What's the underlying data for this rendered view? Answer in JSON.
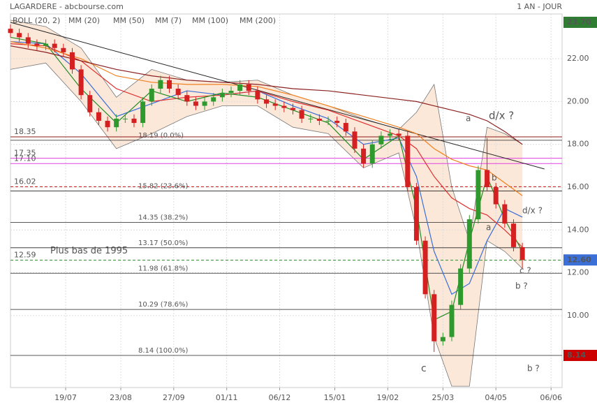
{
  "chart_data": {
    "type": "candlestick",
    "title": "LAGARDERE - abcbourse.com",
    "period": "1 AN - JOUR",
    "xlim": [
      0,
      250
    ],
    "ylim": [
      6.64,
      24.09
    ],
    "grid": true,
    "yticks": [
      {
        "value": 10,
        "label": "10.00"
      },
      {
        "value": 12,
        "label": "12.00"
      },
      {
        "value": 14,
        "label": "14.00"
      },
      {
        "value": 16,
        "label": "16.00"
      },
      {
        "value": 18,
        "label": "18.00"
      },
      {
        "value": 20,
        "label": "20.00"
      },
      {
        "value": 22,
        "label": "22.00"
      }
    ],
    "xticks": [
      {
        "value": 25,
        "label": "19/07"
      },
      {
        "value": 50,
        "label": "23/08"
      },
      {
        "value": 74,
        "label": "27/09"
      },
      {
        "value": 98,
        "label": "01/11"
      },
      {
        "value": 122,
        "label": "06/12"
      },
      {
        "value": 147,
        "label": "15/01"
      },
      {
        "value": 171,
        "label": "19/02"
      },
      {
        "value": 196,
        "label": "25/03"
      },
      {
        "value": 220,
        "label": "04/05"
      },
      {
        "value": 245,
        "label": "06/06"
      }
    ],
    "candles": {
      "up_color": "#2e9a2e",
      "down_color": "#d42020",
      "x": [
        0,
        4,
        8,
        12,
        16,
        20,
        24,
        28,
        32,
        36,
        40,
        44,
        48,
        52,
        56,
        60,
        64,
        68,
        72,
        76,
        80,
        84,
        88,
        92,
        96,
        100,
        104,
        108,
        112,
        116,
        120,
        124,
        128,
        132,
        136,
        140,
        144,
        148,
        152,
        156,
        160,
        164,
        168,
        172,
        176,
        180,
        184,
        188,
        192,
        196,
        200,
        204,
        208,
        212,
        216,
        220,
        224,
        228,
        232
      ],
      "open": [
        23.4,
        23.2,
        23.0,
        22.7,
        22.6,
        22.7,
        22.5,
        22.3,
        21.5,
        20.3,
        19.5,
        19.1,
        18.8,
        19.2,
        19.2,
        19.0,
        20.0,
        20.6,
        21.0,
        20.6,
        20.3,
        20.0,
        19.8,
        20.0,
        20.2,
        20.4,
        20.5,
        20.8,
        20.5,
        20.1,
        19.9,
        19.8,
        19.7,
        19.6,
        19.2,
        19.2,
        19.1,
        19.1,
        19.0,
        18.6,
        17.8,
        17.1,
        18.0,
        18.4,
        18.5,
        18.4,
        16.0,
        13.5,
        11.0,
        8.8,
        9.0,
        10.5,
        12.2,
        14.5,
        16.8,
        16.0,
        15.2,
        14.3,
        13.2
      ],
      "high": [
        23.6,
        23.4,
        23.2,
        22.9,
        22.9,
        22.9,
        22.7,
        22.5,
        21.7,
        20.5,
        19.7,
        19.3,
        19.4,
        19.4,
        19.4,
        20.2,
        20.8,
        21.2,
        21.2,
        20.8,
        20.5,
        20.2,
        20.2,
        20.4,
        20.6,
        20.7,
        21.0,
        21.0,
        20.7,
        20.3,
        20.1,
        20.0,
        19.9,
        19.8,
        19.4,
        19.4,
        19.3,
        19.3,
        19.2,
        18.8,
        18.0,
        18.2,
        18.6,
        18.7,
        18.7,
        18.6,
        16.2,
        13.7,
        11.2,
        9.2,
        10.7,
        12.4,
        14.7,
        17.0,
        18.3,
        16.2,
        15.4,
        14.5,
        13.4
      ],
      "low": [
        23.0,
        22.8,
        22.5,
        22.4,
        22.4,
        22.3,
        22.1,
        21.3,
        20.1,
        19.3,
        18.9,
        18.6,
        18.6,
        19.0,
        18.8,
        18.8,
        19.8,
        20.4,
        20.4,
        20.1,
        19.8,
        19.6,
        19.6,
        19.8,
        20.0,
        20.2,
        20.3,
        20.3,
        19.9,
        19.7,
        19.6,
        19.5,
        19.4,
        19.0,
        19.0,
        18.9,
        18.9,
        18.8,
        18.4,
        17.6,
        16.9,
        16.9,
        17.8,
        18.2,
        18.2,
        15.8,
        13.3,
        10.8,
        8.3,
        8.6,
        8.8,
        10.3,
        12.0,
        14.3,
        15.8,
        15.0,
        14.1,
        13.0,
        12.2
      ],
      "close": [
        23.2,
        23.0,
        22.7,
        22.6,
        22.7,
        22.5,
        22.3,
        21.5,
        20.3,
        19.5,
        19.1,
        18.8,
        19.2,
        19.2,
        19.0,
        20.0,
        20.6,
        21.0,
        20.6,
        20.3,
        20.0,
        19.8,
        20.0,
        20.2,
        20.4,
        20.5,
        20.8,
        20.5,
        20.1,
        19.9,
        19.8,
        19.7,
        19.6,
        19.2,
        19.2,
        19.1,
        19.1,
        19.0,
        18.6,
        17.8,
        17.1,
        18.0,
        18.4,
        18.5,
        18.4,
        16.0,
        13.5,
        11.0,
        8.8,
        9.0,
        10.5,
        12.2,
        14.5,
        16.8,
        16.0,
        15.2,
        14.3,
        13.2,
        12.6
      ]
    },
    "indicator_x": [
      0,
      16,
      32,
      48,
      64,
      80,
      96,
      112,
      128,
      144,
      160,
      176,
      184,
      192,
      200,
      208,
      216,
      224,
      232
    ],
    "bollinger": {
      "name": "BOLL (20, 2)",
      "color": "#777777",
      "fill": "#fbe2d0",
      "upper": [
        23.8,
        23.5,
        22.5,
        20.2,
        21.5,
        21.0,
        20.9,
        21.0,
        20.3,
        19.8,
        19.2,
        18.7,
        19.5,
        20.8,
        16.0,
        13.5,
        18.8,
        18.5,
        18.0
      ],
      "lower": [
        21.5,
        21.8,
        20.0,
        17.8,
        18.5,
        19.3,
        19.8,
        19.8,
        18.8,
        18.5,
        16.9,
        17.6,
        14.0,
        9.0,
        6.7,
        6.7,
        13.5,
        13.0,
        12.2
      ]
    },
    "series": [
      {
        "name": "MM (20)",
        "color": "#3a6fd8",
        "values": [
          22.8,
          22.7,
          21.3,
          19.3,
          19.9,
          20.5,
          20.3,
          20.5,
          19.8,
          19.2,
          18.0,
          18.3,
          16.5,
          13.0,
          11.0,
          11.5,
          13.5,
          15.0,
          14.6
        ]
      },
      {
        "name": "MM (50)",
        "color": "#e03030",
        "values": [
          22.7,
          22.6,
          21.9,
          20.6,
          20.0,
          20.2,
          20.3,
          20.5,
          20.0,
          19.6,
          19.0,
          18.4,
          17.8,
          16.5,
          15.5,
          15.0,
          14.7,
          14.0,
          13.2
        ]
      },
      {
        "name": "MM (7)",
        "color": "#228b22",
        "values": [
          23.0,
          22.7,
          20.6,
          19.0,
          20.5,
          20.0,
          20.4,
          20.2,
          19.6,
          19.0,
          17.3,
          18.4,
          15.0,
          9.8,
          10.2,
          13.5,
          16.5,
          14.5,
          13.0
        ]
      },
      {
        "name": "MM (100)",
        "color": "#f08020",
        "values": [
          22.8,
          22.5,
          22.0,
          21.2,
          20.9,
          20.8,
          20.8,
          20.7,
          20.3,
          19.8,
          19.3,
          18.8,
          18.5,
          17.8,
          17.3,
          17.0,
          16.8,
          16.2,
          15.6
        ]
      },
      {
        "name": "MM (200)",
        "color": "#8b2020",
        "values": [
          22.6,
          22.3,
          21.9,
          21.5,
          21.2,
          21.0,
          20.9,
          20.8,
          20.6,
          20.5,
          20.3,
          20.1,
          20.0,
          19.8,
          19.6,
          19.4,
          19.1,
          18.6,
          18.0
        ]
      }
    ],
    "levels": [
      {
        "value": 18.35,
        "label": "18.35",
        "color": "#8b1a1a",
        "dashed": false
      },
      {
        "value": 17.35,
        "label": "17.35",
        "color": "#e040e0",
        "dashed": false
      },
      {
        "value": 17.1,
        "label": "17.10",
        "color": "#e040e0",
        "dashed": false
      },
      {
        "value": 16.02,
        "label": "16.02",
        "color": "#c01010",
        "dashed": true
      },
      {
        "value": 12.59,
        "label": "12.59",
        "color": "#2a8a2a",
        "dashed": true,
        "note": "Plus bas de 1995"
      }
    ],
    "fib_levels": [
      {
        "value": 18.19,
        "label": "18.19  (0.0%)"
      },
      {
        "value": 15.82,
        "label": "15.82  (23.6%)"
      },
      {
        "value": 14.35,
        "label": "14.35  (38.2%)"
      },
      {
        "value": 13.17,
        "label": "13.17  (50.0%)"
      },
      {
        "value": 11.98,
        "label": "11.98  (61.8%)"
      },
      {
        "value": 10.29,
        "label": "10.29  (78.6%)"
      },
      {
        "value": 8.14,
        "label": "8.14  (100.0%)"
      }
    ],
    "trendline": {
      "x": [
        0,
        242
      ],
      "y": [
        23.7,
        16.85
      ],
      "color": "#222222"
    },
    "price_tags": [
      {
        "value": 23.7,
        "label": "23.70",
        "color": "#2e7d32"
      },
      {
        "value": 12.6,
        "label": "12.60",
        "color": "#3a6fd8"
      },
      {
        "value": 8.14,
        "label": "8.14",
        "color": "#cc0000"
      }
    ],
    "annotations": [
      {
        "text": "a",
        "color": "#2a3a9a"
      },
      {
        "text": "d/x ?",
        "color": "#a01010"
      },
      {
        "text": "b",
        "color": "#a01010"
      },
      {
        "text": "d/x ?",
        "color": "#c01010"
      },
      {
        "text": "a",
        "color": "#c01010"
      },
      {
        "text": "c ?",
        "color": "#c01010"
      },
      {
        "text": "b ?",
        "color": "#2a3a9a"
      },
      {
        "text": "c",
        "color": "#c01010"
      },
      {
        "text": "b ?",
        "color": "#2a3a9a"
      }
    ]
  }
}
